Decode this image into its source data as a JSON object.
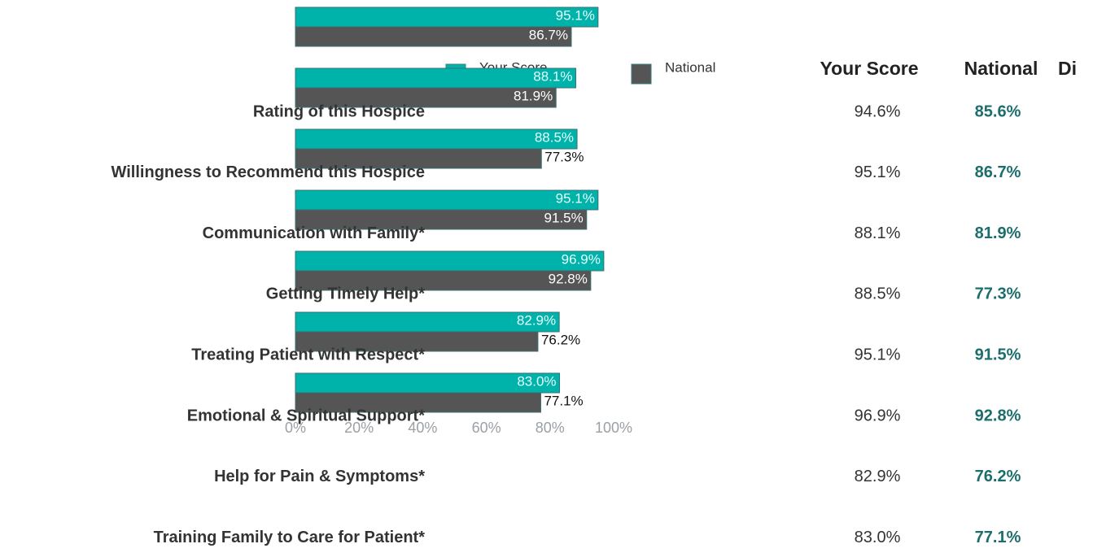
{
  "chart_data": {
    "type": "bar",
    "orientation": "horizontal",
    "series": [
      {
        "name": "Your Score",
        "color": "#00b3aa",
        "values": [
          95.1,
          88.1,
          88.5,
          95.1,
          96.9,
          82.9,
          83.0
        ],
        "value_labels": [
          "95.1%",
          "88.1%",
          "88.5%",
          "95.1%",
          "96.9%",
          "82.9%",
          "83.0%"
        ]
      },
      {
        "name": "National",
        "color": "#555555",
        "values": [
          86.7,
          81.9,
          77.3,
          91.5,
          92.8,
          76.2,
          77.1
        ],
        "value_labels": [
          "86.7%",
          "81.9%",
          "77.3%",
          "91.5%",
          "92.8%",
          "76.2%",
          "77.1%"
        ]
      }
    ],
    "xlim": [
      0,
      100
    ],
    "xticks": [
      {
        "value": 0,
        "label": "0%"
      },
      {
        "value": 20,
        "label": "20%"
      },
      {
        "value": 40,
        "label": "40%"
      },
      {
        "value": 60,
        "label": "60%"
      },
      {
        "value": 80,
        "label": "80%"
      },
      {
        "value": 100,
        "label": "100%"
      }
    ]
  },
  "table": {
    "header": [
      "Your Score",
      "National",
      "Di"
    ],
    "rows": [
      [
        "Rating of this Hospice",
        "94.6%",
        "85.6%"
      ],
      [
        "Willingness to Recommend this Hospice",
        "95.1%",
        "86.7%"
      ],
      [
        "Communication with Family*",
        "88.1%",
        "81.9%"
      ],
      [
        "Getting Timely Help*",
        "88.5%",
        "77.3%"
      ],
      [
        "Treating Patient with Respect*",
        "95.1%",
        "91.5%"
      ],
      [
        "Emotional & Spiritual Support*",
        "96.9%",
        "92.8%"
      ],
      [
        "Help for Pain & Symptoms*",
        "82.9%",
        "76.2%"
      ],
      [
        "Training Family to Care for Patient*",
        "83.0%",
        "77.1%"
      ]
    ]
  }
}
